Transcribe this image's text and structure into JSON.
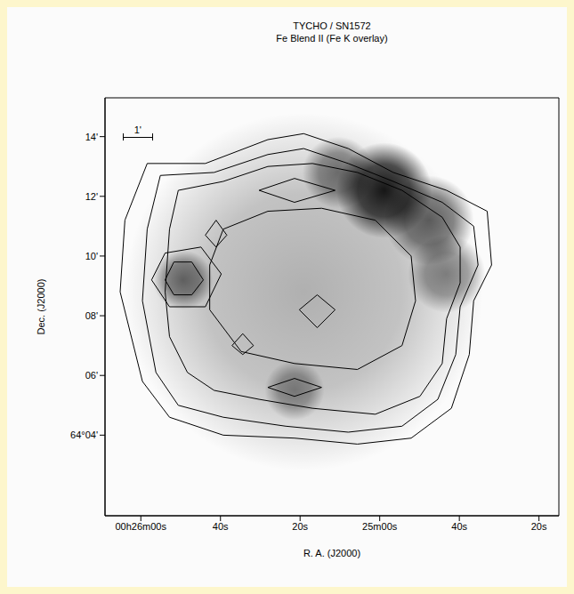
{
  "chart_data": {
    "type": "contour",
    "title": "TYCHO / SN1572",
    "subtitle": "Fe Blend II (Fe K overlay)",
    "x_label": "R. A. (J2000)",
    "y_label": "Dec. (J2000)",
    "color": "#000000",
    "xlim": [
      1569,
      1455
    ],
    "xticks": [
      {
        "value": 1560,
        "label": "00h26m00s"
      },
      {
        "value": 1540,
        "label": "40s"
      },
      {
        "value": 1520,
        "label": "20s"
      },
      {
        "value": 1500,
        "label": "25m00s"
      },
      {
        "value": 1480,
        "label": "40s"
      },
      {
        "value": 1460,
        "label": "20s"
      }
    ],
    "ylim": [
      1.3,
      15.3
    ],
    "yticks": [
      {
        "value": 14,
        "label": "14'"
      },
      {
        "value": 12,
        "label": "12'"
      },
      {
        "value": 10,
        "label": "10'"
      },
      {
        "value": 8,
        "label": "08'"
      },
      {
        "value": 6,
        "label": "06'"
      },
      {
        "value": 4,
        "label": "64°04'"
      }
    ],
    "scale_bar": {
      "label": "1'",
      "length": 1
    },
    "image": [
      {
        "x": 1519.1,
        "y": 8.8,
        "radius": 6.0,
        "intensity": 0.3
      },
      {
        "x": 1498.9,
        "y": 12.2,
        "radius": 1.6,
        "intensity": 0.9
      },
      {
        "x": 1487.6,
        "y": 11.2,
        "radius": 1.5,
        "intensity": 0.6
      },
      {
        "x": 1483.2,
        "y": 9.4,
        "radius": 1.3,
        "intensity": 0.45
      },
      {
        "x": 1510.4,
        "y": 12.8,
        "radius": 1.2,
        "intensity": 0.5
      },
      {
        "x": 1549.4,
        "y": 9.2,
        "radius": 1.0,
        "intensity": 0.55
      },
      {
        "x": 1521.4,
        "y": 5.5,
        "radius": 1.0,
        "intensity": 0.4
      }
    ],
    "contours": [
      {
        "x": [
          1558.4,
          1543.8,
          1528.1,
          1519.1,
          1507.9,
          1496.6,
          1483.2,
          1473.0,
          1471.9,
          1476.4,
          1477.5,
          1482.0,
          1492.1,
          1505.6,
          1521.4,
          1539.3,
          1552.8,
          1559.6,
          1565.2,
          1564.0
        ],
        "y": [
          13.1,
          13.1,
          13.9,
          14.1,
          13.6,
          12.8,
          12.2,
          11.5,
          9.7,
          8.5,
          6.7,
          4.9,
          3.9,
          3.7,
          3.9,
          4.0,
          4.6,
          5.8,
          8.8,
          11.2
        ]
      },
      {
        "x": [
          1555.1,
          1541.6,
          1528.1,
          1519.1,
          1507.9,
          1496.6,
          1484.3,
          1476.4,
          1475.3,
          1479.8,
          1480.9,
          1485.4,
          1494.4,
          1507.9,
          1523.6,
          1539.3,
          1550.6,
          1556.2,
          1559.6,
          1558.4
        ],
        "y": [
          12.7,
          12.8,
          13.4,
          13.6,
          13.1,
          12.5,
          11.8,
          11.0,
          9.7,
          8.3,
          6.7,
          5.2,
          4.3,
          4.1,
          4.3,
          4.6,
          5.0,
          6.1,
          8.5,
          10.9
        ]
      },
      {
        "x": [
          1550.6,
          1539.3,
          1528.1,
          1516.9,
          1505.6,
          1494.4,
          1484.3,
          1479.8,
          1479.8,
          1483.2,
          1484.3,
          1489.9,
          1501.1,
          1516.9,
          1530.3,
          1541.6,
          1548.3,
          1552.8,
          1553.9,
          1552.8
        ],
        "y": [
          12.2,
          12.5,
          13.0,
          13.1,
          12.8,
          12.2,
          11.3,
          10.3,
          9.1,
          7.9,
          6.4,
          5.3,
          4.7,
          4.9,
          5.2,
          5.5,
          6.1,
          7.3,
          8.8,
          10.9
        ]
      },
      {
        "x": [
          1539.3,
          1528.1,
          1514.6,
          1501.1,
          1492.1,
          1491.0,
          1494.4,
          1505.6,
          1521.4,
          1534.8,
          1542.7,
          1542.7
        ],
        "y": [
          10.9,
          11.5,
          11.6,
          11.2,
          10.0,
          8.5,
          7.0,
          6.2,
          6.4,
          6.8,
          8.2,
          9.7
        ]
      },
      {
        "x": [
          1557.3,
          1553.9,
          1544.9,
          1539.8,
          1543.8,
          1552.8
        ],
        "y": [
          9.2,
          10.1,
          10.3,
          9.4,
          8.3,
          8.3
        ]
      },
      {
        "x": [
          1553.9,
          1551.7,
          1547.2,
          1544.3,
          1547.2,
          1551.7
        ],
        "y": [
          9.2,
          9.8,
          9.8,
          9.2,
          8.7,
          8.7
        ]
      },
      {
        "x": [
          1543.8,
          1541.1,
          1538.4,
          1541.1
        ],
        "y": [
          10.7,
          11.2,
          10.7,
          10.3
        ]
      },
      {
        "x": [
          1528.1,
          1521.4,
          1514.6,
          1521.4
        ],
        "y": [
          5.6,
          5.9,
          5.6,
          5.3
        ]
      },
      {
        "x": [
          1520.2,
          1515.7,
          1511.2,
          1515.7
        ],
        "y": [
          8.2,
          8.7,
          8.2,
          7.6
        ]
      },
      {
        "x": [
          1537.1,
          1534.4,
          1531.7,
          1534.4
        ],
        "y": [
          7.0,
          7.4,
          7.0,
          6.7
        ]
      },
      {
        "x": [
          1530.3,
          1521.4,
          1511.2,
          1521.4
        ],
        "y": [
          12.2,
          12.6,
          12.2,
          11.8
        ]
      }
    ]
  }
}
